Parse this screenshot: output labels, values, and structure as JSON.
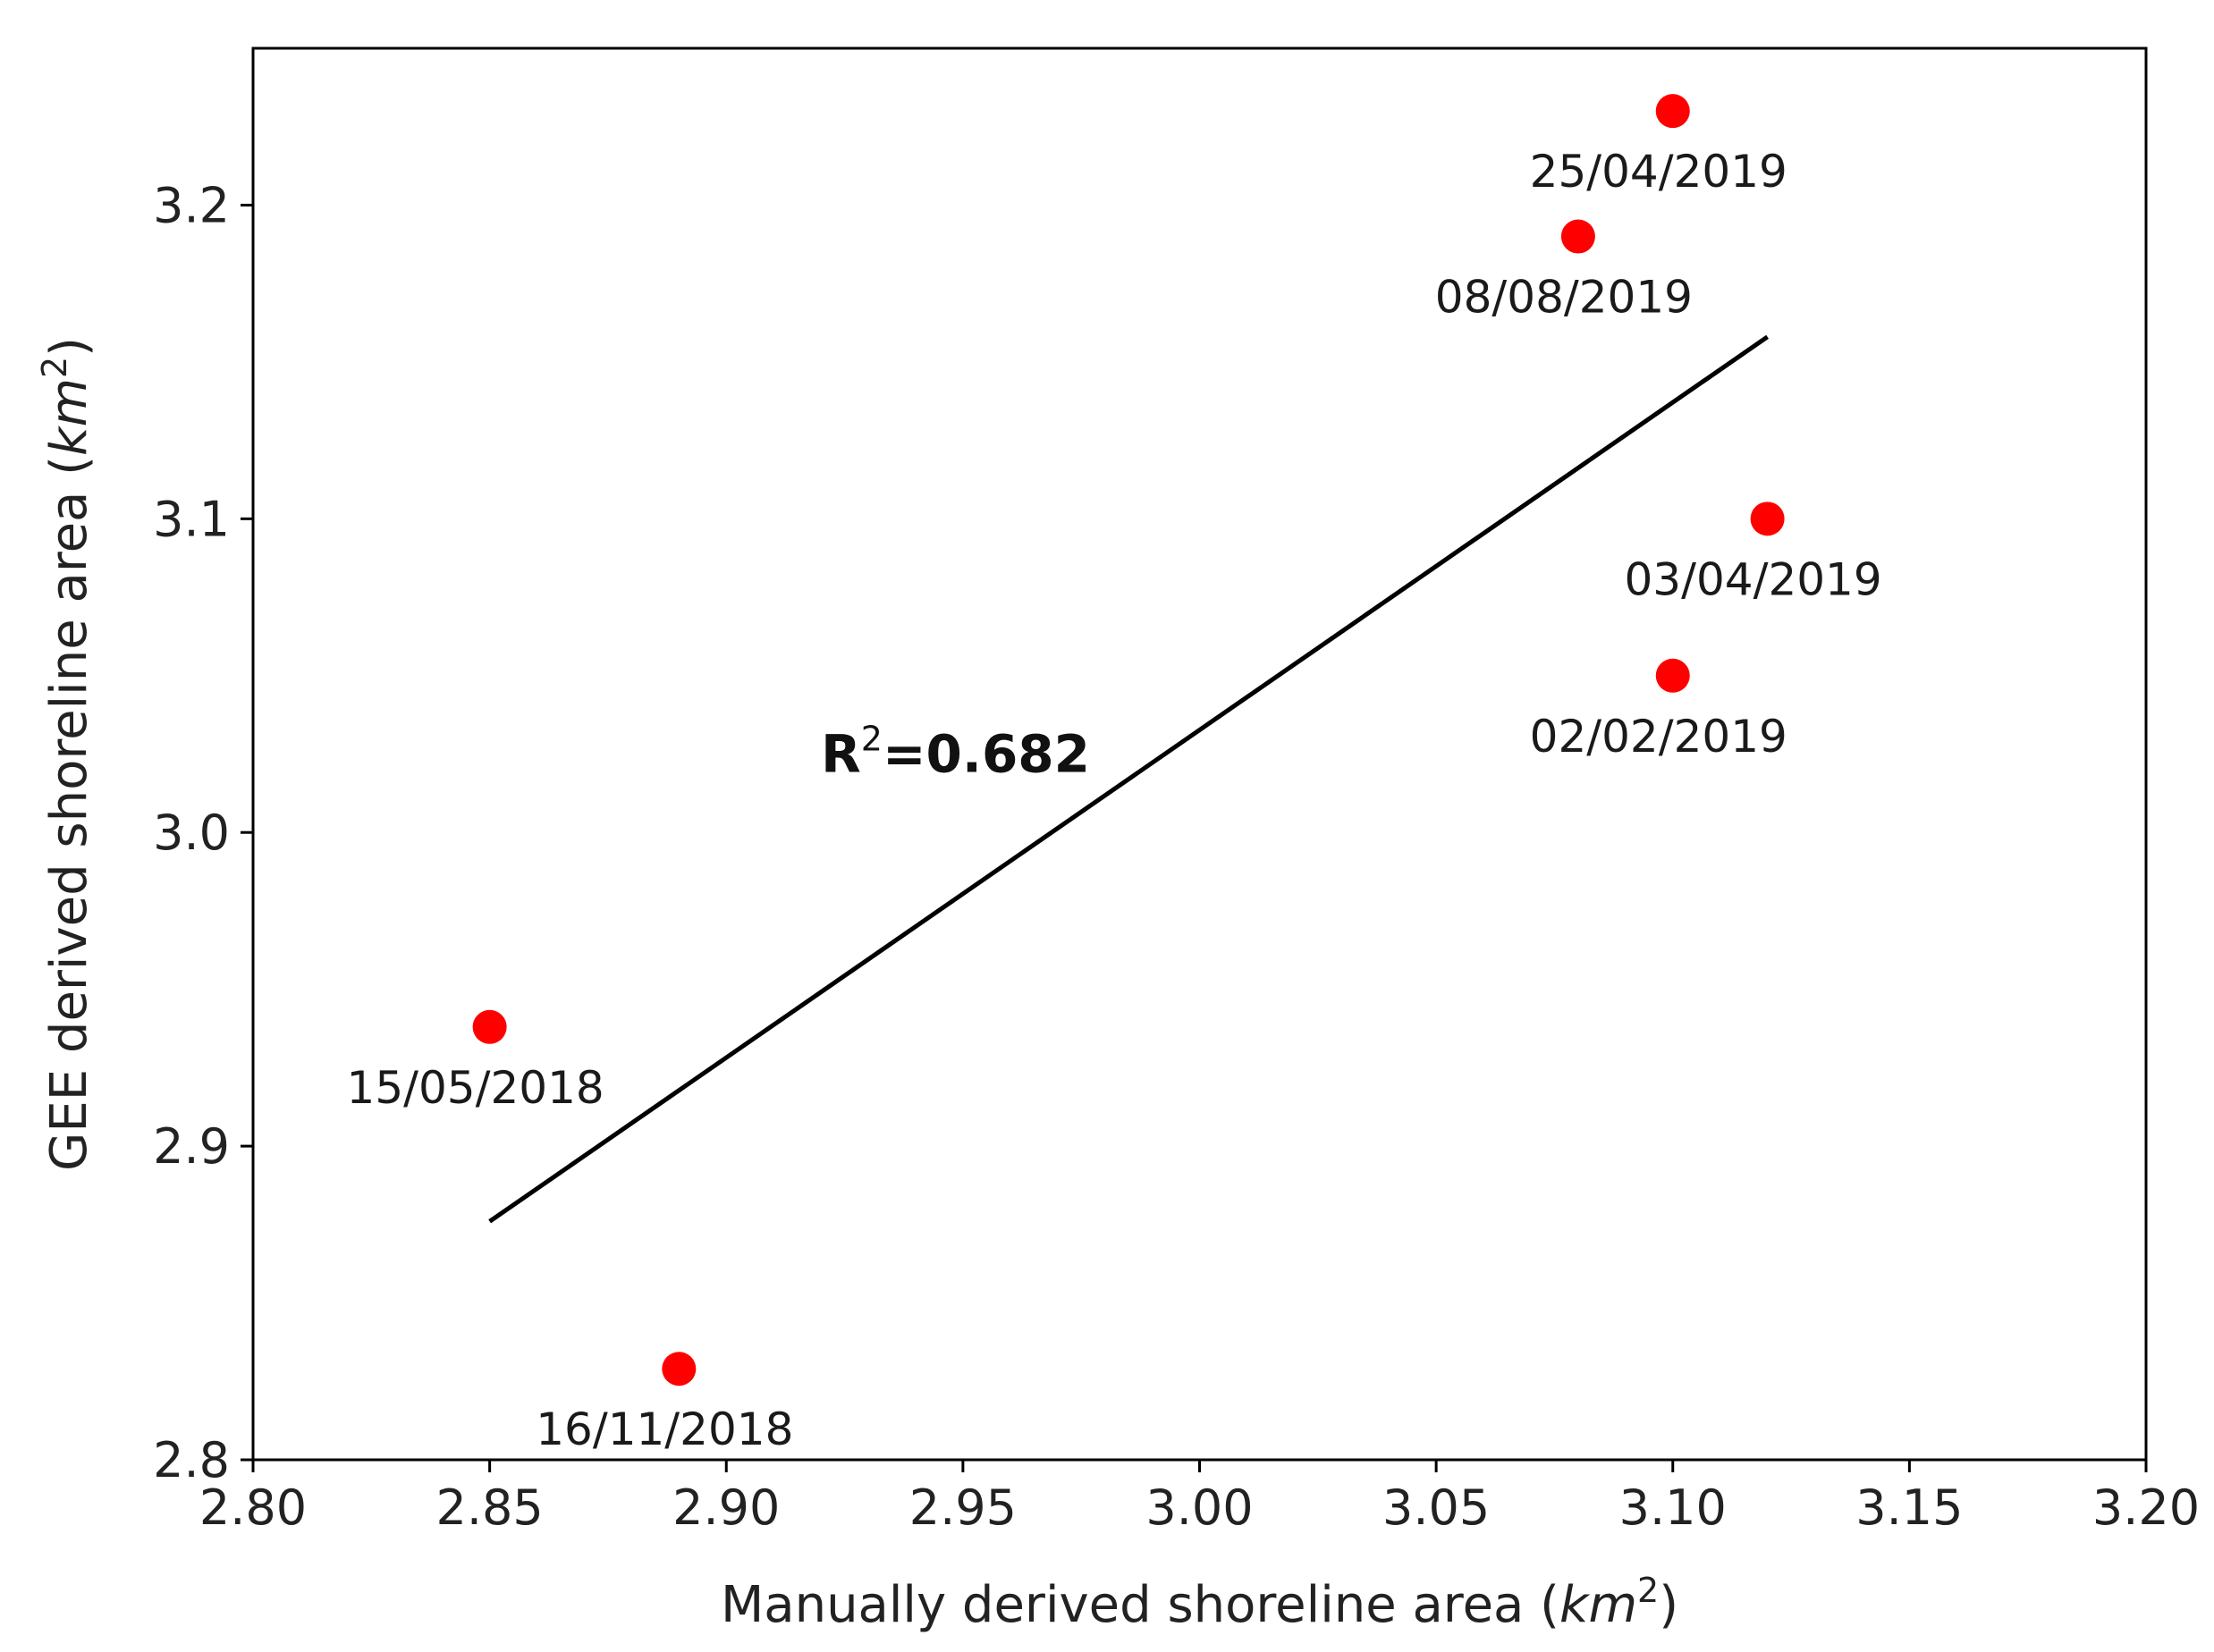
{
  "chart_data": {
    "type": "scatter",
    "title": "",
    "xlabel": "Manually derived shoreline area (",
    "xlabel_unit": "km",
    "xlabel_exp": "2",
    "xlabel_close": ")",
    "ylabel": "GEE derived shoreline area (",
    "ylabel_unit": "km",
    "ylabel_exp": "2",
    "ylabel_close": ")",
    "xlim": [
      2.8,
      3.2
    ],
    "ylim": [
      2.8,
      3.25
    ],
    "xticks": [
      2.8,
      2.85,
      2.9,
      2.95,
      3.0,
      3.05,
      3.1,
      3.15,
      3.2
    ],
    "xtick_labels": [
      "2.80",
      "2.85",
      "2.90",
      "2.95",
      "3.00",
      "3.05",
      "3.10",
      "3.15",
      "3.20"
    ],
    "yticks": [
      2.8,
      2.9,
      3.0,
      3.1,
      3.2
    ],
    "ytick_labels": [
      "2.8",
      "2.9",
      "3.0",
      "3.1",
      "3.2"
    ],
    "grid": false,
    "point_color": "#ff0000",
    "line_color": "#000000",
    "points": [
      {
        "label": "15/05/2018",
        "x": 2.85,
        "y": 2.938
      },
      {
        "label": "16/11/2018",
        "x": 2.89,
        "y": 2.829
      },
      {
        "label": "02/02/2019",
        "x": 3.1,
        "y": 3.05
      },
      {
        "label": "03/04/2019",
        "x": 3.12,
        "y": 3.1
      },
      {
        "label": "25/04/2019",
        "x": 3.1,
        "y": 3.23
      },
      {
        "label": "08/08/2019",
        "x": 3.08,
        "y": 3.19
      }
    ],
    "fit_line": {
      "x": [
        2.85,
        3.12
      ],
      "y": [
        2.876,
        3.158
      ]
    },
    "annotation": {
      "prefix": "R",
      "sup": "2",
      "text": "=0.682",
      "x": 2.92,
      "y": 3.025
    }
  }
}
